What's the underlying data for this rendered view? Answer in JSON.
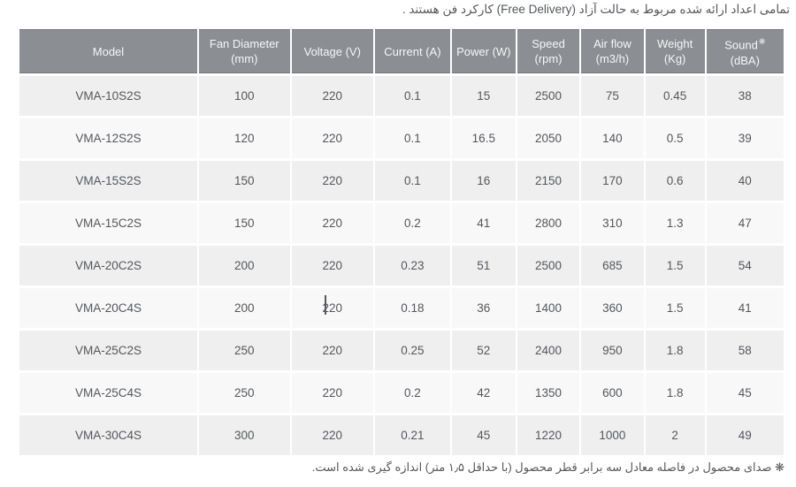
{
  "page": {
    "top_note": "تمامی اعداد ارائه شده مربوط به حالت آزاد (Free Delivery) کارکرد فن هستند .",
    "footer_note": "❋ صدای محصول در فاصله معادل سه برابر قطر محصول (با حداقل ۱٫۵ متر) اندازه گیری شده است."
  },
  "table": {
    "headers": [
      {
        "line1": "Model",
        "line2": ""
      },
      {
        "line1": "Fan Diameter",
        "line2": "(mm)"
      },
      {
        "line1": "Voltage (V)",
        "line2": ""
      },
      {
        "line1": "Current (A)",
        "line2": ""
      },
      {
        "line1": "Power (W)",
        "line2": ""
      },
      {
        "line1": "Speed",
        "line2": "(rpm)"
      },
      {
        "line1": "Air flow",
        "line2": "(m3/h)"
      },
      {
        "line1": "Weight",
        "line2": "(Kg)"
      },
      {
        "line1": "Sound",
        "line2": "(dBA)",
        "marker": "❋"
      }
    ],
    "rows": [
      [
        "VMA-10S2S",
        "100",
        "220",
        "0.1",
        "15",
        "2500",
        "75",
        "0.45",
        "38"
      ],
      [
        "VMA-12S2S",
        "120",
        "220",
        "0.1",
        "16.5",
        "2050",
        "140",
        "0.5",
        "39"
      ],
      [
        "VMA-15S2S",
        "150",
        "220",
        "0.1",
        "16",
        "2150",
        "170",
        "0.6",
        "40"
      ],
      [
        "VMA-15C2S",
        "150",
        "220",
        "0.2",
        "41",
        "2800",
        "310",
        "1.3",
        "47"
      ],
      [
        "VMA-20C2S",
        "200",
        "220",
        "0.23",
        "51",
        "2500",
        "685",
        "1.5",
        "54"
      ],
      [
        "VMA-20C4S",
        "200",
        "220",
        "0.18",
        "36",
        "1400",
        "360",
        "1.5",
        "41"
      ],
      [
        "VMA-25C2S",
        "250",
        "220",
        "0.25",
        "52",
        "2400",
        "950",
        "1.8",
        "58"
      ],
      [
        "VMA-25C4S",
        "250",
        "220",
        "0.2",
        "42",
        "1350",
        "600",
        "1.8",
        "45"
      ],
      [
        "VMA-30C4S",
        "300",
        "220",
        "0.21",
        "45",
        "1220",
        "1000",
        "2",
        "49"
      ]
    ]
  },
  "colors": {
    "header_bg": "#8b8f94",
    "header_text": "#f5f6f7",
    "row_alt_bg": "#efeff0",
    "row_bg": "#f8f8f9",
    "body_text": "#54575b"
  }
}
